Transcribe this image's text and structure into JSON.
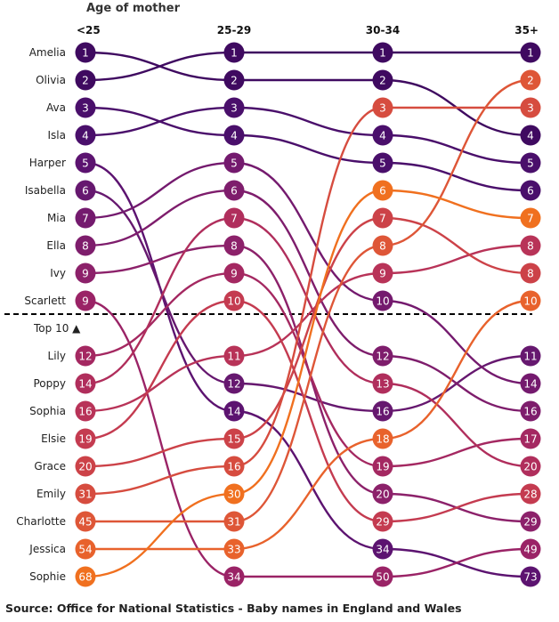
{
  "chart_data": {
    "type": "bump",
    "title": "Age of mother",
    "columns": [
      "<25",
      "25-29",
      "30-34",
      "35+"
    ],
    "series": [
      {
        "name": "Amelia",
        "ranks": [
          1,
          2,
          2,
          4
        ],
        "color": "#3f0a60"
      },
      {
        "name": "Olivia",
        "ranks": [
          2,
          1,
          1,
          1
        ],
        "color": "#3f0a60"
      },
      {
        "name": "Ava",
        "ranks": [
          3,
          4,
          5,
          6
        ],
        "color": "#4a0f6b"
      },
      {
        "name": "Isla",
        "ranks": [
          4,
          3,
          4,
          5
        ],
        "color": "#4a0f6b"
      },
      {
        "name": "Harper",
        "ranks": [
          5,
          14,
          34,
          73
        ],
        "color": "#5c1370"
      },
      {
        "name": "Isabella",
        "ranks": [
          6,
          12,
          16,
          11
        ],
        "color": "#66186f"
      },
      {
        "name": "Mia",
        "ranks": [
          7,
          5,
          10,
          14
        ],
        "color": "#741a6e"
      },
      {
        "name": "Ella",
        "ranks": [
          8,
          6,
          12,
          16
        ],
        "color": "#7e1d6c"
      },
      {
        "name": "Ivy",
        "ranks": [
          9,
          8,
          20,
          29
        ],
        "color": "#8c216a"
      },
      {
        "name": "Scarlett",
        "ranks": [
          9,
          34,
          50,
          49
        ],
        "color": "#9a2366"
      },
      {
        "name": "Lily",
        "ranks": [
          12,
          9,
          19,
          17
        ],
        "color": "#a42861"
      },
      {
        "name": "Poppy",
        "ranks": [
          14,
          7,
          13,
          20
        ],
        "color": "#b02e5c"
      },
      {
        "name": "Sophia",
        "ranks": [
          16,
          11,
          9,
          8
        ],
        "color": "#b83358"
      },
      {
        "name": "Elsie",
        "ranks": [
          19,
          10,
          29,
          28
        ],
        "color": "#c43b50"
      },
      {
        "name": "Grace",
        "ranks": [
          20,
          15,
          7,
          8
        ],
        "color": "#cc4248"
      },
      {
        "name": "Emily",
        "ranks": [
          31,
          16,
          3,
          3
        ],
        "color": "#d64c3f"
      },
      {
        "name": "Charlotte",
        "ranks": [
          45,
          31,
          8,
          2
        ],
        "color": "#de5637"
      },
      {
        "name": "Jessica",
        "ranks": [
          54,
          33,
          18,
          10
        ],
        "color": "#e8622c"
      },
      {
        "name": "Sophie",
        "ranks": [
          68,
          30,
          6,
          7
        ],
        "color": "#f0701f"
      }
    ],
    "divider_label": "Top 10 ▲",
    "top_n": 10
  },
  "source": "Source: Office for National Statistics - Baby names in England and Wales"
}
